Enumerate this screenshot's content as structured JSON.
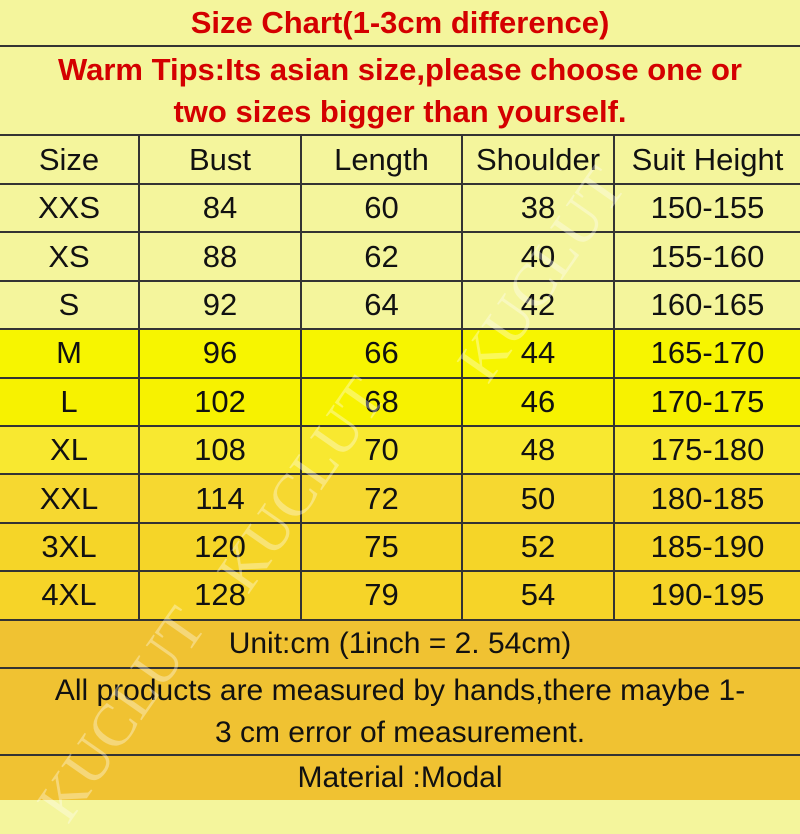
{
  "title": "Size Chart(1-3cm difference)",
  "warm_tips": [
    "Warm Tips:Its asian size,please choose one or",
    "two sizes bigger than yourself."
  ],
  "table": {
    "headers": [
      "Size",
      "Bust",
      "Length",
      "Shoulder",
      "Suit Height"
    ],
    "rows": [
      [
        "XXS",
        "84",
        "60",
        "38",
        "150-155"
      ],
      [
        "XS",
        "88",
        "62",
        "40",
        "155-160"
      ],
      [
        "S",
        "92",
        "64",
        "42",
        "160-165"
      ],
      [
        "M",
        "96",
        "66",
        "44",
        "165-170"
      ],
      [
        "L",
        "102",
        "68",
        "46",
        "170-175"
      ],
      [
        "XL",
        "108",
        "70",
        "48",
        "175-180"
      ],
      [
        "XXL",
        "114",
        "72",
        "50",
        "180-185"
      ],
      [
        "3XL",
        "120",
        "75",
        "52",
        "185-190"
      ],
      [
        "4XL",
        "128",
        "79",
        "54",
        "190-195"
      ]
    ]
  },
  "unit": "Unit:cm (1inch = 2. 54cm)",
  "note": [
    "All products are measured by hands,there maybe 1-",
    "3 cm error of measurement."
  ],
  "material": "Material :Modal",
  "watermark": "KUCLUT",
  "colors": {
    "title_text": "#d40000",
    "pale_yellow": "#f4f59c",
    "bright_yellow": "#f7f500",
    "gold": "#f0c232"
  }
}
